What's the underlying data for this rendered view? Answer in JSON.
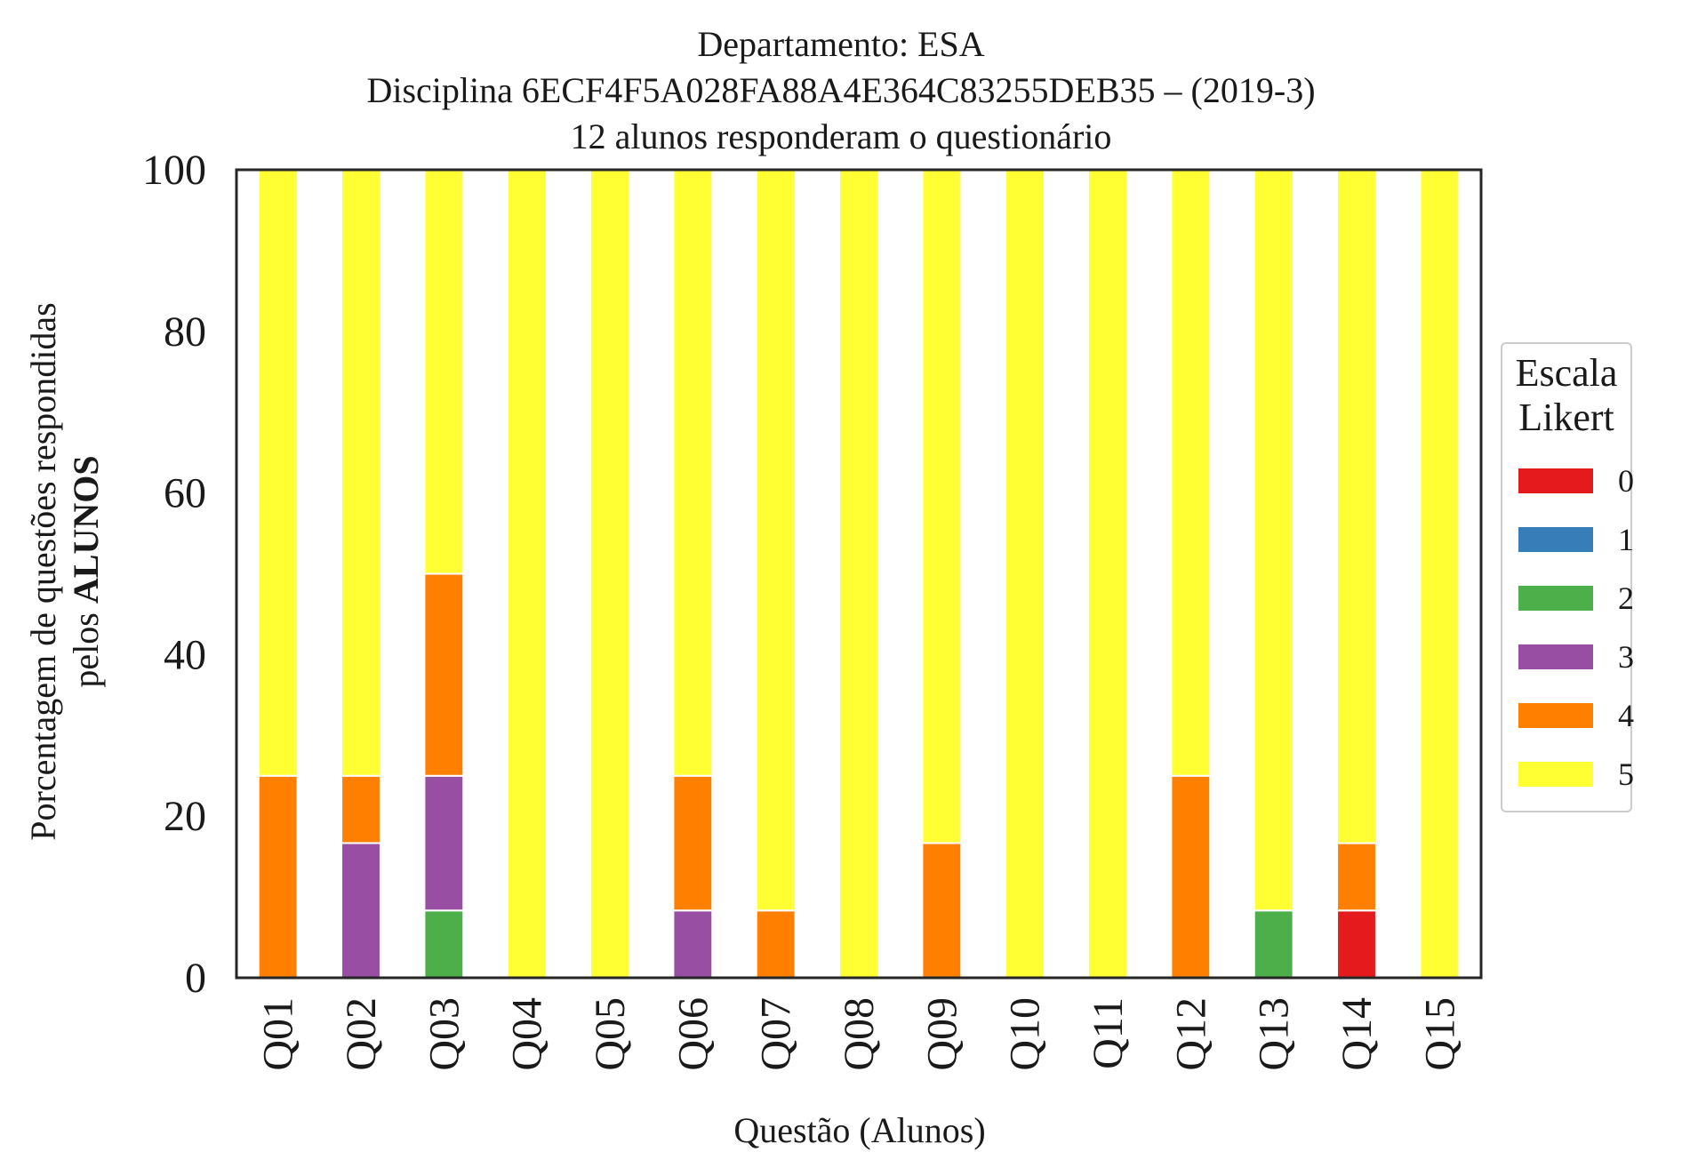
{
  "chart_data": {
    "type": "bar",
    "stacked": true,
    "title_lines": [
      "Departamento: ESA",
      "Disciplina 6ECF4F5A028FA88A4E364C83255DEB35 – (2019-3)",
      "12 alunos responderam o questionário"
    ],
    "xlabel": "Questão (Alunos)",
    "ylabel_line1": "Porcentagem de questões respondidas",
    "ylabel_line2_prefix": "pelos ",
    "ylabel_line2_bold": "ALUNOS",
    "ylim": [
      0,
      100
    ],
    "yticks": [
      0,
      20,
      40,
      60,
      80,
      100
    ],
    "categories": [
      "Q01",
      "Q02",
      "Q03",
      "Q04",
      "Q05",
      "Q06",
      "Q07",
      "Q08",
      "Q09",
      "Q10",
      "Q11",
      "Q12",
      "Q13",
      "Q14",
      "Q15"
    ],
    "legend_title_lines": [
      "Escala",
      "Likert"
    ],
    "legend_placement": "right, outside plot",
    "series": [
      {
        "name": "0",
        "color": "#e41a1c",
        "values": [
          0,
          0,
          0,
          0,
          0,
          0,
          0,
          0,
          0,
          0,
          0,
          0,
          0,
          8.33,
          0
        ]
      },
      {
        "name": "1",
        "color": "#377eb8",
        "values": [
          0,
          0,
          0,
          0,
          0,
          0,
          0,
          0,
          0,
          0,
          0,
          0,
          0,
          0,
          0
        ]
      },
      {
        "name": "2",
        "color": "#4daf4a",
        "values": [
          0,
          0,
          8.33,
          0,
          0,
          0,
          0,
          0,
          0,
          0,
          0,
          0,
          8.33,
          0,
          0
        ]
      },
      {
        "name": "3",
        "color": "#984ea3",
        "values": [
          0,
          16.67,
          16.67,
          0,
          0,
          8.33,
          0,
          0,
          0,
          0,
          0,
          0,
          0,
          0,
          0
        ]
      },
      {
        "name": "4",
        "color": "#ff7f00",
        "values": [
          25,
          8.33,
          25,
          0,
          0,
          16.67,
          8.33,
          0,
          16.67,
          0,
          0,
          25,
          0,
          8.33,
          0
        ]
      },
      {
        "name": "5",
        "color": "#ffff33",
        "values": [
          75,
          75,
          50,
          100,
          100,
          75,
          91.67,
          100,
          83.33,
          100,
          100,
          75,
          91.67,
          83.33,
          100
        ]
      }
    ]
  }
}
